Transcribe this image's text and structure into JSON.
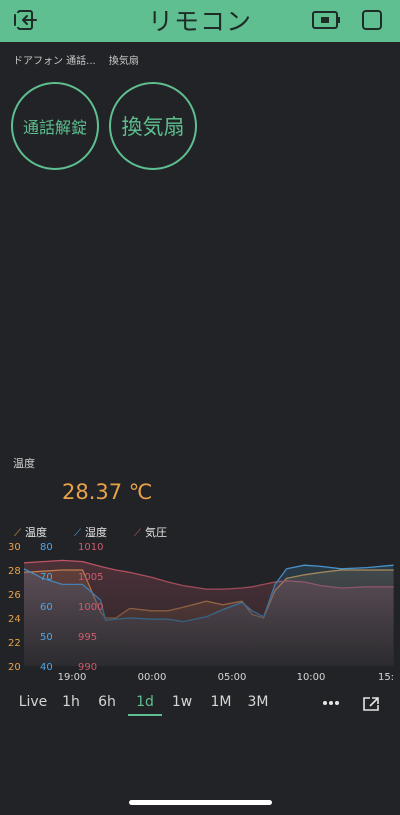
{
  "header": {
    "title": "リモコン"
  },
  "tabs": [
    "ドアフォン 通話...",
    "換気扇"
  ],
  "buttons": {
    "unlock": "通話解錠",
    "fan": "換気扇"
  },
  "sensor": {
    "label": "温度",
    "value": "28.37 ℃"
  },
  "colors": {
    "accent": "#5fbf90",
    "temperature": "#e8a24a",
    "humidity": "#4ea6e6",
    "pressure": "#d05a6e"
  },
  "legend": [
    {
      "name": "温度",
      "color": "#e8a24a"
    },
    {
      "name": "湿度",
      "color": "#4ea6e6"
    },
    {
      "name": "気圧",
      "color": "#d05a6e"
    }
  ],
  "chart_data": {
    "type": "area",
    "x_ticks": [
      "19:00",
      "00:00",
      "05:00",
      "10:00",
      "15:"
    ],
    "x": [
      0,
      1.5,
      3,
      4.6,
      6,
      6.4,
      7.2,
      8.3,
      10,
      11.3,
      12.5,
      14.3,
      15.6,
      17.1,
      17.9,
      18.8,
      19.7,
      20.6,
      22,
      23.3,
      24.9,
      26.9,
      29
    ],
    "series": [
      {
        "name": "温度",
        "axis_ticks": [
          "20",
          "22",
          "24",
          "26",
          "28",
          "30"
        ],
        "ylim": [
          20,
          30
        ],
        "values": [
          27.8,
          27.9,
          28.0,
          28.0,
          24.5,
          24.0,
          24.0,
          24.8,
          24.6,
          24.6,
          24.9,
          25.4,
          25.1,
          25.4,
          24.3,
          24.0,
          26.3,
          27.3,
          27.6,
          27.8,
          28.0,
          28.0,
          28.0
        ]
      },
      {
        "name": "湿度",
        "axis_ticks": [
          "40",
          "50",
          "60",
          "70",
          "80"
        ],
        "values": [
          28.1,
          27.3,
          26.8,
          26.8,
          25.5,
          23.8,
          23.9,
          24.0,
          23.9,
          23.9,
          23.7,
          24.1,
          24.7,
          25.3,
          24.6,
          24.1,
          26.8,
          28.1,
          28.4,
          28.3,
          28.1,
          28.2,
          28.4
        ]
      },
      {
        "name": "気圧",
        "axis_ticks": [
          "990",
          "995",
          "1000",
          "1005",
          "1010"
        ],
        "values": [
          28.6,
          28.7,
          28.8,
          28.7,
          28.3,
          28.2,
          28.0,
          27.8,
          27.4,
          27.0,
          26.7,
          26.4,
          26.4,
          26.5,
          26.6,
          26.8,
          27.0,
          27.1,
          27.0,
          26.7,
          26.5,
          26.6,
          26.6
        ]
      }
    ]
  },
  "time_ranges": [
    "Live",
    "1h",
    "6h",
    "1d",
    "1w",
    "1M",
    "3M"
  ],
  "time_range_selected": "1d"
}
